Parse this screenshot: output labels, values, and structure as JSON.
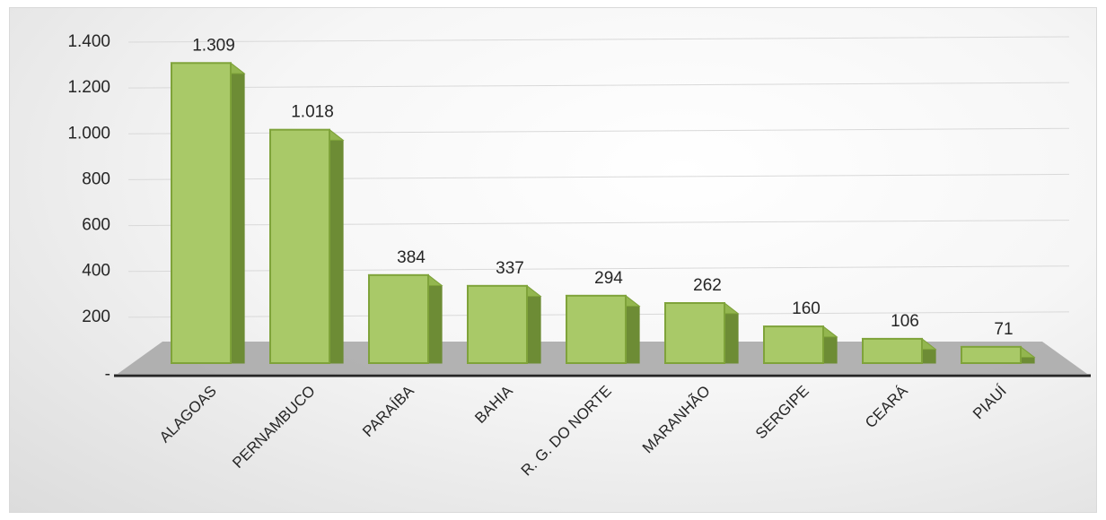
{
  "chart_data": {
    "type": "bar",
    "style": "3d-column",
    "categories": [
      "ALAGOAS",
      "PERNAMBUCO",
      "PARAÍBA",
      "BAHIA",
      "R. G. DO NORTE",
      "MARANHÃO",
      "SERGIPE",
      "CEARÁ",
      "PIAUÍ"
    ],
    "values": [
      1309,
      1018,
      384,
      337,
      294,
      262,
      160,
      106,
      71
    ],
    "data_labels": [
      "1.309",
      "1.018",
      "384",
      "337",
      "294",
      "262",
      "160",
      "106",
      "71"
    ],
    "yticks": [
      {
        "value": 0,
        "label": "-"
      },
      {
        "value": 200,
        "label": "200"
      },
      {
        "value": 400,
        "label": "400"
      },
      {
        "value": 600,
        "label": "600"
      },
      {
        "value": 800,
        "label": "800"
      },
      {
        "value": 1000,
        "label": "1.000"
      },
      {
        "value": 1200,
        "label": "1.200"
      },
      {
        "value": 1400,
        "label": "1.400"
      }
    ],
    "ylim": [
      0,
      1400
    ],
    "title": "",
    "xlabel": "",
    "ylabel": "",
    "grid": true,
    "legend": "none",
    "colors": {
      "bar_front": "#a9c968",
      "bar_front_edge": "#7fa33a",
      "bar_side": "#6d8c35",
      "bar_top": "#93b64f",
      "floor": "#a6a6a6",
      "axis": "#262626",
      "grid": "#d9d9d9"
    }
  }
}
